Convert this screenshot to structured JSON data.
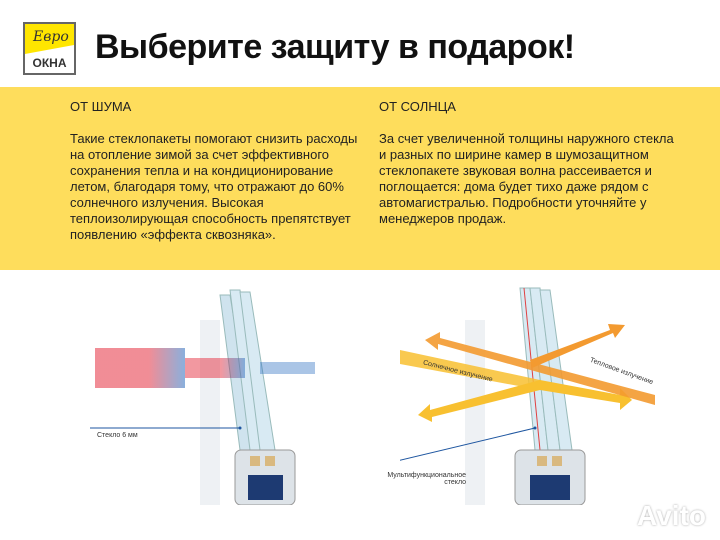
{
  "logo": {
    "line1": "Евро",
    "line2": "ОКНА"
  },
  "title": "Выберите защиту в подарок!",
  "left": {
    "heading": "ОТ ШУМА",
    "text": "Такие стеклопакеты помогают снизить расходы на отопление зимой за счет эффективного сохранения тепла и на кондиционирование летом, благодаря тому, что отражают до 60% солнечного излучения. Высокая теплоизолирующая способность препятствует появлению «эффекта сквозняка»."
  },
  "right": {
    "heading": "ОТ СОЛНЦА",
    "text": "За счет увеличенной толщины наружного стекла и разных по ширине камер в шумозащитном стеклопакете звуковая волна рассеивается и поглощается: дома будет тихо даже рядом с автомагистралью. Подробности уточняйте у менеджеров продаж."
  },
  "illustration_left": {
    "caption": "Стекло 6 мм"
  },
  "illustration_right": {
    "sun_label": "Солнечное излучение",
    "heat_label": "Тепловое излучение",
    "caption_line1": "Мультифункциональное",
    "caption_line2": "стекло"
  },
  "watermark": "Avito",
  "colors": {
    "yellow": "#fedd5c",
    "sound_red": "#e53040",
    "sound_blue": "#2a6fc0",
    "sun_arrow": "#f8c030",
    "heat_arrow": "#f39a30"
  }
}
